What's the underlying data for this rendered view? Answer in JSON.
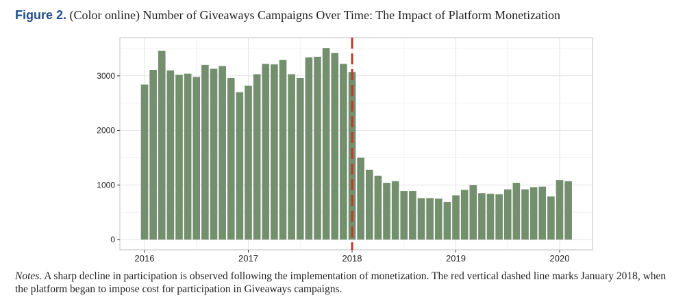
{
  "figure": {
    "label": "Figure 2.",
    "caption": "(Color online) Number of Giveaways Campaigns Over Time: The Impact of Platform Monetization"
  },
  "notes": {
    "label": "Notes.",
    "text": "A sharp decline in participation is observed following the implementation of monetization. The red vertical dashed line marks January 2018, when the platform began to impose cost for participation in Giveaways campaigns."
  },
  "chart_data": {
    "type": "bar",
    "x_start": "2016-01",
    "x_interval": "month",
    "values": [
      2840,
      3110,
      3460,
      3100,
      3020,
      3040,
      2980,
      3200,
      3130,
      3180,
      2960,
      2700,
      2820,
      3030,
      3220,
      3210,
      3290,
      3030,
      2960,
      3340,
      3350,
      3510,
      3420,
      3220,
      3070,
      1500,
      1280,
      1170,
      1040,
      1070,
      890,
      890,
      760,
      760,
      750,
      690,
      810,
      910,
      1000,
      850,
      840,
      830,
      920,
      1040,
      920,
      960,
      970,
      790,
      1090,
      1070
    ],
    "x_ticks": [
      "2016",
      "2017",
      "2018",
      "2019",
      "2020"
    ],
    "y_ticks": [
      "0",
      "1000",
      "2000",
      "3000"
    ],
    "ylim": [
      0,
      3700
    ],
    "grid": true,
    "bar_color": "#738f6e",
    "annotation": {
      "type": "vertical-dashed-line",
      "at": "2018-01",
      "color": "#c0392b"
    }
  }
}
